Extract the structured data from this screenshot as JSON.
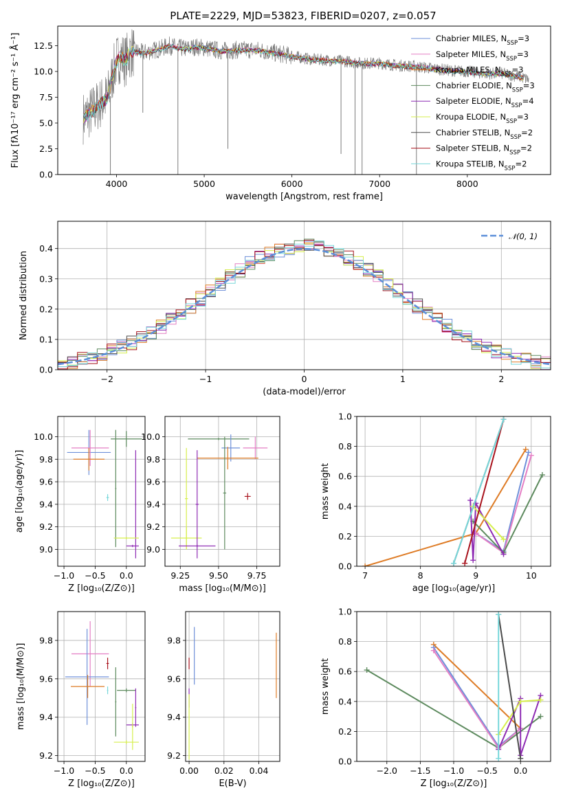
{
  "figure_title": "PLATE=2229, MJD=53823, FIBERID=0207, z=0.057",
  "colors": {
    "Chabrier MILES": "#6d8fd9",
    "Salpeter MILES": "#e47ec4",
    "Kroupa MILES": "#de7b25",
    "Chabrier ELODIE": "#5d8a5e",
    "Salpeter ELODIE": "#8e2bb3",
    "Kroupa ELODIE": "#d6ef4c",
    "Chabrier STELIB": "#4a4a4a",
    "Salpeter STELIB": "#a8121c",
    "Kroupa STELIB": "#77d7da",
    "data": "#7a7a7a",
    "gaussian": "#5b8ed9",
    "grid": "#b0b0b0"
  },
  "legend_spectrum": [
    {
      "model": "Chabrier MILES",
      "label": "Chabrier MILES, N",
      "sub": "SSP",
      "eq": "=3"
    },
    {
      "model": "Salpeter MILES",
      "label": "Salpeter MILES, N",
      "sub": "SSP",
      "eq": "=3"
    },
    {
      "model": "Kroupa MILES",
      "label": "Kroupa MILES, N",
      "sub": "SSP",
      "eq": "=3"
    },
    {
      "model": "Chabrier ELODIE",
      "label": "Chabrier ELODIE, N",
      "sub": "SSP",
      "eq": "=3"
    },
    {
      "model": "Salpeter ELODIE",
      "label": "Salpeter ELODIE, N",
      "sub": "SSP",
      "eq": "=4"
    },
    {
      "model": "Kroupa ELODIE",
      "label": "Kroupa ELODIE, N",
      "sub": "SSP",
      "eq": "=3"
    },
    {
      "model": "Chabrier STELIB",
      "label": "Chabrier STELIB, N",
      "sub": "SSP",
      "eq": "=2"
    },
    {
      "model": "Salpeter STELIB",
      "label": "Salpeter STELIB, N",
      "sub": "SSP",
      "eq": "=2"
    },
    {
      "model": "Kroupa STELIB",
      "label": "Kroupa STELIB, N",
      "sub": "SSP",
      "eq": "=2"
    }
  ],
  "legend_hist": "𝒩(0, 1)",
  "chart_data": [
    {
      "id": "spectrum",
      "type": "line",
      "title": "PLATE=2229, MJD=53823, FIBERID=0207, z=0.057",
      "xlabel": "wavelength [Angstrom, rest frame]",
      "ylabel": "Flux [fλ10⁻¹⁷ erg cm⁻² s⁻¹ Å⁻¹]",
      "xlim": [
        3330,
        8950
      ],
      "ylim": [
        0,
        14.4
      ],
      "xticks": [
        4000,
        5000,
        6000,
        7000,
        8000
      ],
      "yticks": [
        0.0,
        2.5,
        5.0,
        7.5,
        10.0,
        12.5
      ],
      "grid": false,
      "legend": "upper right",
      "data_x": [
        3620,
        3700,
        3800,
        3900,
        3950,
        4000,
        4050,
        4100,
        4150,
        4200,
        4300,
        4400,
        4500,
        4600,
        4700,
        4800,
        4900,
        5000,
        5200,
        5400,
        5600,
        5800,
        6000,
        6200,
        6400,
        6600,
        6800,
        7000,
        7200,
        7400,
        7600,
        7800,
        8000,
        8200,
        8400,
        8600,
        8700
      ],
      "data_y": [
        5.5,
        6.0,
        6.8,
        7.5,
        9.5,
        11.0,
        11.5,
        11.0,
        11.8,
        12.0,
        11.8,
        12.0,
        12.2,
        12.5,
        12.3,
        12.2,
        12.4,
        12.3,
        12.0,
        12.1,
        12.1,
        11.8,
        11.5,
        11.2,
        11.1,
        11.0,
        10.8,
        10.8,
        10.6,
        10.5,
        10.3,
        10.1,
        10.0,
        9.8,
        9.8,
        9.5,
        9.2
      ]
    },
    {
      "id": "residual_hist",
      "type": "line",
      "xlabel": "(data-model)/error",
      "ylabel": "Normed distribution",
      "xlim": [
        -2.5,
        2.5
      ],
      "ylim": [
        0,
        0.49
      ],
      "xticks": [
        -2,
        -1,
        0,
        1,
        2
      ],
      "yticks": [
        0.0,
        0.1,
        0.2,
        0.3,
        0.4
      ],
      "grid": true,
      "legend": "upper right",
      "series_name": "𝒩(0, 1)",
      "gaussian_mean": 0,
      "gaussian_sigma": 1
    },
    {
      "id": "age_vs_Z",
      "type": "scatter",
      "xlabel": "Z [log₁₀(Z/Z⊙)]",
      "ylabel": "age  [log₁₀(age/yr)]",
      "xlim": [
        -1.1,
        0.3
      ],
      "ylim": [
        8.85,
        10.18
      ],
      "xticks": [
        -1.0,
        -0.5,
        0.0
      ],
      "yticks": [
        9.0,
        9.2,
        9.4,
        9.6,
        9.8,
        10.0
      ],
      "grid": true,
      "points": [
        {
          "model": "Chabrier MILES",
          "x": -0.6,
          "y": 9.86,
          "xerr": 0.35,
          "yerr": 0.2
        },
        {
          "model": "Salpeter MILES",
          "x": -0.58,
          "y": 9.9,
          "xerr": 0.3,
          "yerr": 0.16
        },
        {
          "model": "Kroupa MILES",
          "x": -0.6,
          "y": 9.8,
          "xerr": 0.25,
          "yerr": 0.1
        },
        {
          "model": "Kroupa STELIB",
          "x": -0.3,
          "y": 9.46,
          "xerr": 0.02,
          "yerr": 0.03
        },
        {
          "model": "Chabrier ELODIE",
          "x": 0.0,
          "y": 9.98,
          "xerr": 0.25,
          "yerr": 0.07
        },
        {
          "model": "Chabrier ELODIE",
          "x": -0.17,
          "y": 9.54,
          "xerr": 0.01,
          "yerr": 0.52
        },
        {
          "model": "Salpeter ELODIE",
          "x": 0.15,
          "y": 9.4,
          "xerr": 0.01,
          "yerr": 0.48
        },
        {
          "model": "Salpeter ELODIE",
          "x": 0.1,
          "y": 9.03,
          "xerr": 0.1,
          "yerr": 0.01
        },
        {
          "model": "Kroupa ELODIE",
          "x": 0.0,
          "y": 9.1,
          "xerr": 0.2,
          "yerr": 0.01
        }
      ]
    },
    {
      "id": "age_vs_mass",
      "type": "scatter",
      "xlabel": "mass [log₁₀(M/M⊙)]",
      "xlim": [
        9.15,
        9.9
      ],
      "ylim": [
        8.85,
        10.18
      ],
      "xticks": [
        9.25,
        9.5,
        9.75
      ],
      "yticks": [
        9.0,
        9.2,
        9.4,
        9.6,
        9.8,
        10.0
      ],
      "grid": true,
      "points": [
        {
          "model": "Chabrier ELODIE",
          "x": 9.5,
          "y": 9.98,
          "xerr": 0.2,
          "yerr": 0.01
        },
        {
          "model": "Chabrier MILES",
          "x": 9.58,
          "y": 9.9,
          "xerr": 0.06,
          "yerr": 0.12
        },
        {
          "model": "Salpeter MILES",
          "x": 9.74,
          "y": 9.9,
          "xerr": 0.08,
          "yerr": 0.1
        },
        {
          "model": "Kroupa MILES",
          "x": 9.56,
          "y": 9.81,
          "xerr": 0.2,
          "yerr": 0.1
        },
        {
          "model": "Chabrier ELODIE",
          "x": 9.54,
          "y": 9.5,
          "xerr": 0.01,
          "yerr": 0.5
        },
        {
          "model": "Salpeter STELIB",
          "x": 9.69,
          "y": 9.47,
          "xerr": 0.02,
          "yerr": 0.03
        },
        {
          "model": "Kroupa ELODIE",
          "x": 9.29,
          "y": 9.1,
          "xerr": 0.1,
          "yerr": 0.1
        },
        {
          "model": "Kroupa ELODIE",
          "x": 9.29,
          "y": 9.45,
          "xerr": 0.01,
          "yerr": 0.45
        },
        {
          "model": "Salpeter ELODIE",
          "x": 9.36,
          "y": 9.03,
          "xerr": 0.12,
          "yerr": 0.01
        },
        {
          "model": "Salpeter ELODIE",
          "x": 9.36,
          "y": 9.4,
          "xerr": 0.01,
          "yerr": 0.48
        }
      ]
    },
    {
      "id": "weight_vs_age",
      "type": "line",
      "xlabel": "age  [log₁₀(age/yr)]",
      "ylabel": "mass weight",
      "xlim": [
        6.85,
        10.35
      ],
      "ylim": [
        0,
        1.0
      ],
      "xticks": [
        7,
        8,
        9,
        10
      ],
      "yticks": [
        0.0,
        0.2,
        0.4,
        0.6,
        0.8,
        1.0
      ],
      "grid": true,
      "series": [
        {
          "name": "Kroupa MILES",
          "x": [
            7.0,
            9.0,
            9.9
          ],
          "y": [
            0.0,
            0.22,
            0.78
          ]
        },
        {
          "name": "Chabrier MILES",
          "x": [
            9.0,
            9.5,
            9.95
          ],
          "y": [
            0.22,
            0.1,
            0.76
          ]
        },
        {
          "name": "Salpeter MILES",
          "x": [
            9.0,
            9.5,
            10.0
          ],
          "y": [
            0.22,
            0.09,
            0.74
          ]
        },
        {
          "name": "Chabrier ELODIE",
          "x": [
            8.95,
            9.5,
            10.2
          ],
          "y": [
            0.3,
            0.09,
            0.61
          ]
        },
        {
          "name": "Salpeter ELODIE",
          "x": [
            8.9,
            8.95,
            9.0,
            9.5
          ],
          "y": [
            0.44,
            0.04,
            0.42,
            0.08
          ]
        },
        {
          "name": "Kroupa ELODIE",
          "x": [
            8.95,
            9.5
          ],
          "y": [
            0.4,
            0.18
          ]
        },
        {
          "name": "Chabrier STELIB",
          "x": [
            8.6,
            9.5
          ],
          "y": [
            0.02,
            0.98
          ]
        },
        {
          "name": "Salpeter STELIB",
          "x": [
            8.8,
            9.5
          ],
          "y": [
            0.02,
            0.98
          ]
        },
        {
          "name": "Kroupa STELIB",
          "x": [
            8.6,
            9.5
          ],
          "y": [
            0.02,
            0.98
          ]
        }
      ]
    },
    {
      "id": "mass_vs_Z",
      "type": "scatter",
      "xlabel": "Z [log₁₀(Z/Z⊙)]",
      "ylabel": "mass [log₁₀(M/M⊙)]",
      "xlim": [
        -1.1,
        0.3
      ],
      "ylim": [
        9.17,
        9.95
      ],
      "xticks": [
        -1.0,
        -0.5,
        0.0
      ],
      "yticks": [
        9.2,
        9.4,
        9.6,
        9.8
      ],
      "grid": true,
      "points": [
        {
          "model": "Salpeter MILES",
          "x": -0.58,
          "y": 9.73,
          "xerr": 0.3,
          "yerr": 0.17
        },
        {
          "model": "Chabrier MILES",
          "x": -0.63,
          "y": 9.61,
          "xerr": 0.35,
          "yerr": 0.25
        },
        {
          "model": "Kroupa MILES",
          "x": -0.62,
          "y": 9.56,
          "xerr": 0.27,
          "yerr": 0.06
        },
        {
          "model": "Salpeter STELIB",
          "x": -0.3,
          "y": 9.68,
          "xerr": 0.02,
          "yerr": 0.03
        },
        {
          "model": "Kroupa STELIB",
          "x": -0.3,
          "y": 9.54,
          "xerr": 0.01,
          "yerr": 0.02
        },
        {
          "model": "Chabrier ELODIE",
          "x": 0.0,
          "y": 9.54,
          "xerr": 0.15,
          "yerr": 0.01
        },
        {
          "model": "Chabrier ELODIE",
          "x": -0.17,
          "y": 9.48,
          "xerr": 0.01,
          "yerr": 0.18
        },
        {
          "model": "Salpeter ELODIE",
          "x": 0.15,
          "y": 9.45,
          "xerr": 0.01,
          "yerr": 0.1
        },
        {
          "model": "Salpeter ELODIE",
          "x": 0.1,
          "y": 9.36,
          "xerr": 0.1,
          "yerr": 0.01
        },
        {
          "model": "Kroupa ELODIE",
          "x": 0.0,
          "y": 9.27,
          "xerr": 0.2,
          "yerr": 0.01
        },
        {
          "model": "Kroupa ELODIE",
          "x": 0.1,
          "y": 9.35,
          "xerr": 0.01,
          "yerr": 0.12
        }
      ]
    },
    {
      "id": "mass_vs_ebv",
      "type": "scatter",
      "xlabel": "E(B-V)",
      "xlim": [
        -0.002,
        0.052
      ],
      "ylim": [
        9.17,
        9.95
      ],
      "xticks": [
        0.0,
        0.02,
        0.04
      ],
      "yticks": [
        9.2,
        9.4,
        9.6,
        9.8
      ],
      "grid": true,
      "points": [
        {
          "model": "Chabrier MILES",
          "x": 0.003,
          "y": 9.72,
          "xerr": 0,
          "yerr": 0.15
        },
        {
          "model": "Salpeter STELIB",
          "x": 0.0,
          "y": 9.68,
          "xerr": 0,
          "yerr": 0.03
        },
        {
          "model": "Salpeter ELODIE",
          "x": 0.0,
          "y": 9.5,
          "xerr": 0,
          "yerr": 0.05
        },
        {
          "model": "Kroupa ELODIE",
          "x": 0.0,
          "y": 9.35,
          "xerr": 0,
          "yerr": 0.17
        },
        {
          "model": "Kroupa MILES",
          "x": 0.05,
          "y": 9.67,
          "xerr": 0,
          "yerr": 0.17
        }
      ]
    },
    {
      "id": "weight_vs_Z",
      "type": "line",
      "xlabel": "Z [log₁₀(Z/Z⊙)]",
      "ylabel": "mass weight",
      "xlim": [
        -2.45,
        0.45
      ],
      "ylim": [
        0,
        1.0
      ],
      "xticks": [
        -2.0,
        -1.5,
        -1.0,
        -0.5,
        0.0
      ],
      "yticks": [
        0.0,
        0.2,
        0.4,
        0.6,
        0.8,
        1.0
      ],
      "grid": true,
      "series": [
        {
          "name": "Chabrier ELODIE",
          "x": [
            -2.3,
            -0.33,
            0.3
          ],
          "y": [
            0.61,
            0.09,
            0.3
          ]
        },
        {
          "name": "Kroupa MILES",
          "x": [
            -1.3,
            0.0
          ],
          "y": [
            0.78,
            0.22
          ]
        },
        {
          "name": "Chabrier MILES",
          "x": [
            -1.3,
            -0.33,
            0.0
          ],
          "y": [
            0.76,
            0.1,
            0.22
          ]
        },
        {
          "name": "Salpeter MILES",
          "x": [
            -1.3,
            -0.33,
            0.0
          ],
          "y": [
            0.74,
            0.09,
            0.22
          ]
        },
        {
          "name": "Salpeter ELODIE",
          "x": [
            -0.33,
            0.0,
            0.0,
            0.3
          ],
          "y": [
            0.08,
            0.42,
            0.04,
            0.44
          ]
        },
        {
          "name": "Kroupa ELODIE",
          "x": [
            -0.33,
            0.0,
            0.3
          ],
          "y": [
            0.18,
            0.4,
            0.41
          ]
        },
        {
          "name": "Chabrier STELIB",
          "x": [
            -0.33,
            0.0
          ],
          "y": [
            0.98,
            0.02
          ]
        },
        {
          "name": "Kroupa STELIB",
          "x": [
            -0.33,
            -0.33
          ],
          "y": [
            0.98,
            0.02
          ]
        }
      ]
    }
  ]
}
